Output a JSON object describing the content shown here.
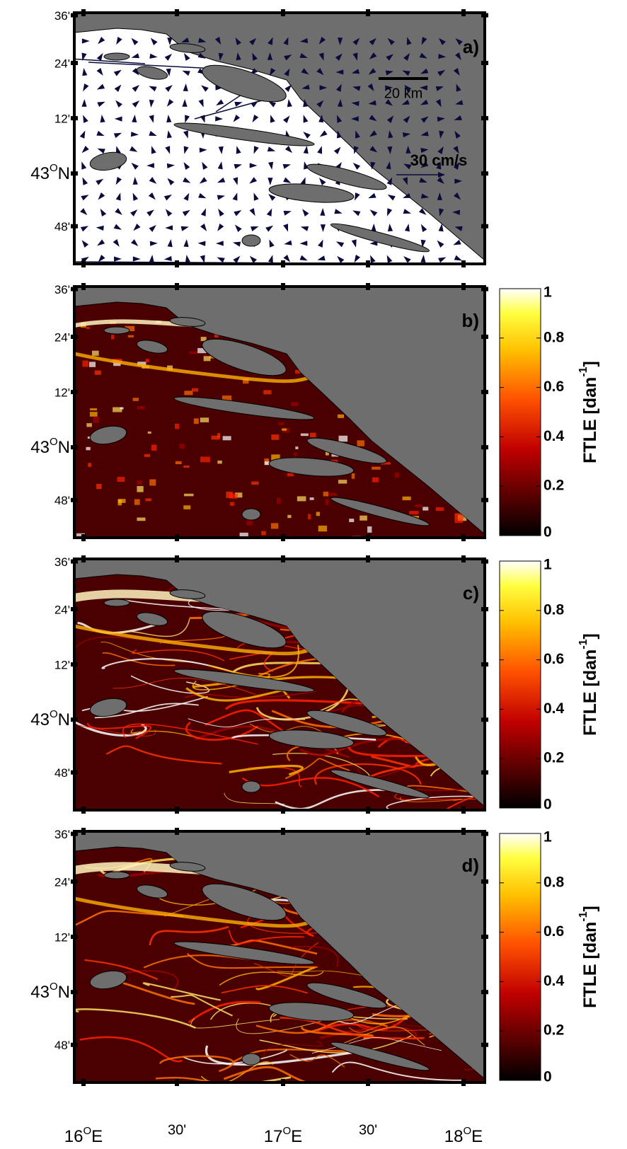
{
  "panels": [
    {
      "label": "a)",
      "scale_bar": "20 km",
      "vector_scale": "30 cm/s"
    },
    {
      "label": "b)"
    },
    {
      "label": "c)"
    },
    {
      "label": "d)"
    }
  ],
  "y_tick_labels": [
    "36'",
    "24'",
    "12'",
    {
      "deg": "43",
      "sup": "O",
      "hemi": "N"
    },
    "48'"
  ],
  "x_tick_labels": [
    {
      "deg": "16",
      "sup": "O",
      "hemi": "E"
    },
    "30'",
    {
      "deg": "17",
      "sup": "O",
      "hemi": "E"
    },
    "30'",
    {
      "deg": "18",
      "sup": "O",
      "hemi": "E"
    }
  ],
  "colorbar": {
    "ticks": [
      0,
      0.2,
      0.4,
      0.6,
      0.8,
      1
    ],
    "lim": [
      0,
      1
    ],
    "label": "FTLE  [dan",
    "label_sup": "-1",
    "label_end": "]"
  }
}
